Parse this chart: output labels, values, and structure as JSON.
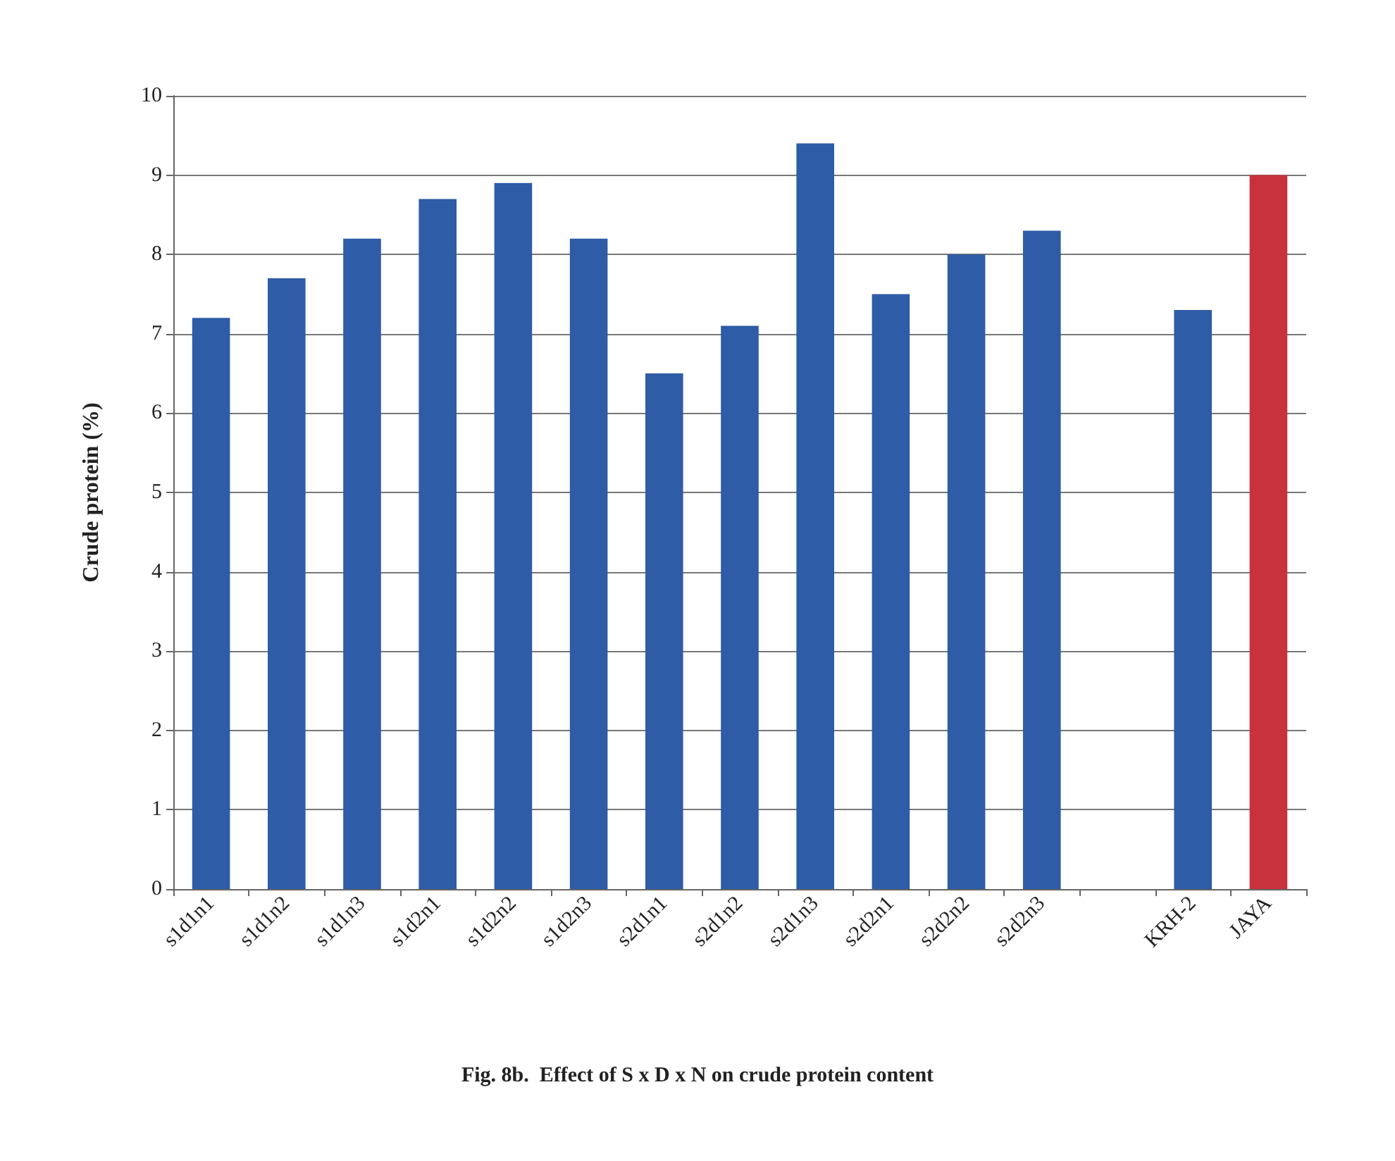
{
  "chart_data": {
    "type": "bar",
    "title": "Fig. 8b.  Effect of S x D x N on crude protein content",
    "ylabel": "Crude protein (%)",
    "categories": [
      "s1d1n1",
      "s1d1n2",
      "s1d1n3",
      "s1d2n1",
      "s1d2n2",
      "s1d2n3",
      "s2d1n1",
      "s2d1n2",
      "s2d1n3",
      "s2d2n1",
      "s2d2n2",
      "s2d2n3",
      null,
      "KRH-2",
      "JAYA"
    ],
    "values": [
      7.2,
      7.7,
      8.2,
      8.7,
      8.9,
      8.2,
      6.5,
      7.1,
      9.4,
      7.5,
      8.0,
      8.3,
      null,
      7.3,
      9.0
    ],
    "colors": [
      "#2e5ca6",
      "#2e5ca6",
      "#2e5ca6",
      "#2e5ca6",
      "#2e5ca6",
      "#2e5ca6",
      "#2e5ca6",
      "#2e5ca6",
      "#2e5ca6",
      "#2e5ca6",
      "#2e5ca6",
      "#2e5ca6",
      "#2e5ca6",
      "#2e5ca6",
      "#c8323c"
    ],
    "ylim": [
      0,
      10
    ],
    "yticks": [
      0,
      1,
      2,
      3,
      4,
      5,
      6,
      7,
      8,
      9,
      10
    ],
    "grid": "y"
  }
}
